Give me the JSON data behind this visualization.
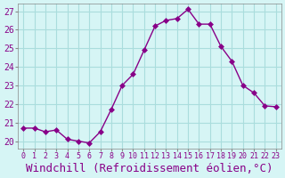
{
  "x": [
    0,
    1,
    2,
    3,
    4,
    5,
    6,
    7,
    8,
    9,
    10,
    11,
    12,
    13,
    14,
    15,
    16,
    17,
    18,
    19,
    20,
    21,
    22,
    23
  ],
  "y": [
    20.7,
    20.7,
    20.5,
    20.6,
    20.1,
    20.0,
    19.9,
    20.5,
    21.7,
    23.0,
    23.6,
    24.9,
    26.2,
    26.5,
    26.6,
    27.1,
    26.3,
    26.3,
    25.1,
    24.3,
    23.0,
    22.6,
    21.9,
    21.85
  ],
  "line_color": "#880088",
  "marker": "D",
  "marker_size": 3,
  "bg_color": "#d6f5f5",
  "grid_color": "#aadddd",
  "xlabel": "Windchill (Refroidissement éolien,°C)",
  "xlabel_color": "#880088",
  "xlabel_fontsize": 9,
  "ytick_values": [
    20,
    21,
    22,
    23,
    24,
    25,
    26,
    27
  ],
  "xtick_labels": [
    "0",
    "1",
    "2",
    "3",
    "4",
    "5",
    "6",
    "7",
    "8",
    "9",
    "10",
    "11",
    "12",
    "13",
    "14",
    "15",
    "16",
    "17",
    "18",
    "19",
    "20",
    "21",
    "22",
    "23"
  ],
  "ylim": [
    19.6,
    27.4
  ],
  "xlim": [
    -0.5,
    23.5
  ],
  "tick_color": "#880088",
  "tick_fontsize": 7,
  "xtick_fontsize": 6
}
